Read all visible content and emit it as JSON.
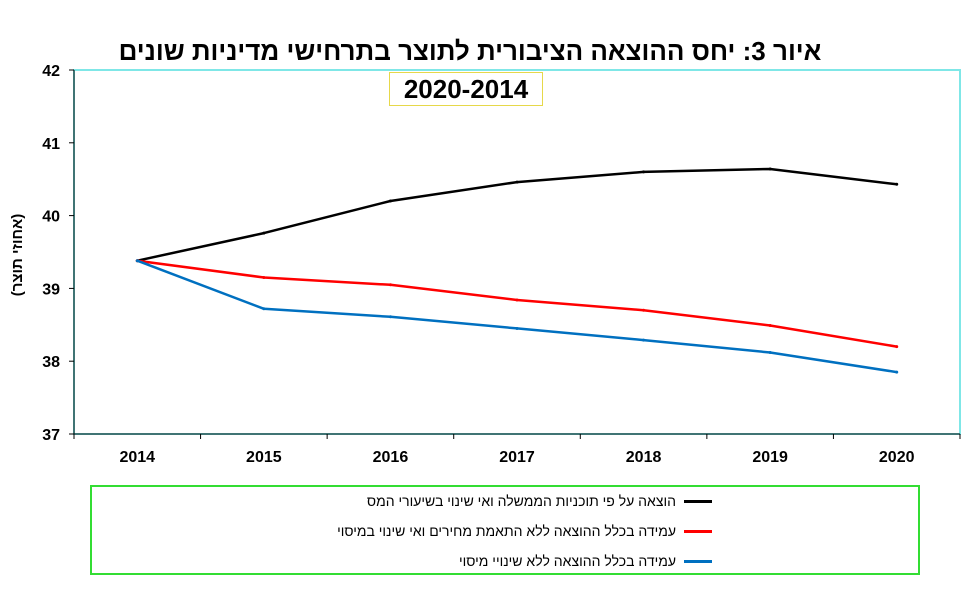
{
  "chart_data": {
    "type": "line",
    "title_line1": "איור 3: יחס ההוצאה הציבורית לתוצר בתרחישי מדיניות שונים",
    "title_line2": "2020-2014",
    "ylabel": "(אחוזי תוצר)",
    "xlabel": "",
    "categories": [
      "2014",
      "2015",
      "2016",
      "2017",
      "2018",
      "2019",
      "2020"
    ],
    "ylim": [
      37,
      42
    ],
    "yticks": [
      "37",
      "38",
      "39",
      "40",
      "41",
      "42"
    ],
    "grid": false,
    "legend_position": "bottom",
    "series": [
      {
        "name": "הוצאה על פי תוכניות הממשלה ואי שינוי בשיעורי המס",
        "color": "#000000",
        "values": [
          39.38,
          39.76,
          40.2,
          40.46,
          40.6,
          40.64,
          40.43
        ]
      },
      {
        "name": "עמידה בכלל ההוצאה ללא התאמת מחירים ואי שינוי במיסוי",
        "color": "#ff0000",
        "values": [
          39.38,
          39.15,
          39.05,
          38.84,
          38.7,
          38.49,
          38.2
        ]
      },
      {
        "name": "עמידה בכלל ההוצאה ללא שינויי מיסוי",
        "color": "#0070c0",
        "values": [
          39.38,
          38.72,
          38.61,
          38.45,
          38.29,
          38.12,
          37.85
        ]
      }
    ]
  }
}
